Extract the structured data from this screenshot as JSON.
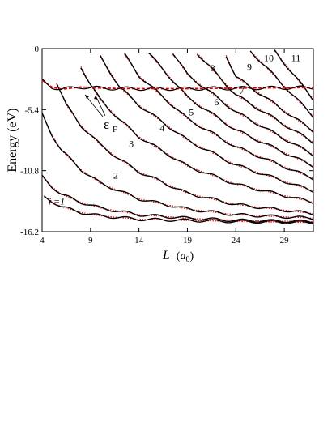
{
  "chart_data": {
    "type": "line",
    "xlabel_main": "L",
    "xlabel_unit": "a",
    "xlabel_unit_sub": "0",
    "ylabel": "Energy (eV)",
    "xlim": [
      4,
      32
    ],
    "ylim": [
      -16.2,
      0
    ],
    "x_ticks": [
      4,
      9,
      14,
      19,
      24,
      29
    ],
    "x_tick_labels": [
      "4",
      "9",
      "14",
      "19",
      "24",
      "29"
    ],
    "y_ticks": [
      0,
      -5.4,
      -10.8,
      -16.2
    ],
    "y_tick_labels": [
      "0",
      "-5.4",
      "-10.8",
      "-16.2"
    ],
    "colors": {
      "solid": "#000000",
      "dotted": "#e00000",
      "fermi": "#e00000"
    },
    "fermi_label": "ε",
    "fermi_label_sub": "F",
    "levels": [
      {
        "label": "i =1",
        "label_at": [
          5.5,
          -13.8
        ],
        "points": [
          [
            4.2,
            -13.1
          ],
          [
            6,
            -14.0
          ],
          [
            8,
            -14.5
          ],
          [
            10,
            -14.8
          ],
          [
            14,
            -15.1
          ],
          [
            19,
            -15.2
          ],
          [
            24,
            -15.3
          ],
          [
            32,
            -15.4
          ]
        ]
      },
      {
        "label": "2",
        "label_at": [
          11.6,
          -11.5
        ],
        "points": [
          [
            4,
            -11.3
          ],
          [
            5,
            -12.2
          ],
          [
            6,
            -12.9
          ],
          [
            8,
            -13.6
          ],
          [
            10,
            -14.1
          ],
          [
            14,
            -14.7
          ],
          [
            19,
            -15.0
          ],
          [
            24,
            -15.2
          ],
          [
            32,
            -15.3
          ]
        ]
      },
      {
        "label": "3",
        "label_at": [
          13.2,
          -8.7
        ],
        "points": [
          [
            4,
            -5.8
          ],
          [
            5,
            -7.6
          ],
          [
            6,
            -9.0
          ],
          [
            8,
            -10.7
          ],
          [
            10,
            -11.9
          ],
          [
            14,
            -13.3
          ],
          [
            19,
            -14.2
          ],
          [
            24,
            -14.7
          ],
          [
            32,
            -15.0
          ]
        ]
      },
      {
        "label": "4",
        "label_at": [
          16.4,
          -7.3
        ],
        "points": [
          [
            5.5,
            -3.0
          ],
          [
            6.5,
            -5.0
          ],
          [
            8,
            -6.8
          ],
          [
            10,
            -8.5
          ],
          [
            12,
            -9.8
          ],
          [
            14,
            -10.9
          ],
          [
            19,
            -12.8
          ],
          [
            24,
            -13.8
          ],
          [
            32,
            -14.6
          ]
        ]
      },
      {
        "label": "5",
        "label_at": [
          19.4,
          -5.9
        ],
        "points": [
          [
            8,
            -1.6
          ],
          [
            9,
            -3.2
          ],
          [
            10,
            -4.5
          ],
          [
            12,
            -6.3
          ],
          [
            14,
            -7.8
          ],
          [
            19,
            -10.4
          ],
          [
            24,
            -12.0
          ],
          [
            32,
            -13.6
          ]
        ]
      },
      {
        "label": "6",
        "label_at": [
          22.0,
          -5.0
        ],
        "points": [
          [
            10,
            -0.7
          ],
          [
            12,
            -3.4
          ],
          [
            14,
            -5.0
          ],
          [
            19,
            -8.1
          ],
          [
            24,
            -10.3
          ],
          [
            32,
            -12.6
          ]
        ]
      },
      {
        "label": "7",
        "label_at": [
          24.6,
          -4.0
        ],
        "points": [
          [
            12.5,
            -0.5
          ],
          [
            14,
            -2.4
          ],
          [
            19,
            -6.2
          ],
          [
            24,
            -8.7
          ],
          [
            32,
            -11.5
          ]
        ]
      },
      {
        "label": "8",
        "label_at": [
          21.6,
          -2.0
        ],
        "points": [
          [
            15,
            -0.4
          ],
          [
            19,
            -4.3
          ],
          [
            24,
            -7.2
          ],
          [
            32,
            -10.4
          ]
        ]
      },
      {
        "label": "9",
        "label_at": [
          25.4,
          -1.9
        ],
        "points": [
          [
            17.5,
            -0.4
          ],
          [
            19,
            -2.3
          ],
          [
            24,
            -5.6
          ],
          [
            32,
            -9.4
          ]
        ]
      },
      {
        "label": "10",
        "label_at": [
          27.4,
          -1.1
        ],
        "points": [
          [
            20,
            -0.4
          ],
          [
            24,
            -4.1
          ],
          [
            32,
            -8.3
          ]
        ]
      },
      {
        "label": "11",
        "label_at": [
          30.2,
          -1.1
        ],
        "points": [
          [
            23,
            -0.6
          ],
          [
            24,
            -2.5
          ],
          [
            32,
            -7.3
          ]
        ]
      },
      {
        "label": "",
        "label_at": null,
        "points": [
          [
            25.5,
            -0.2
          ],
          [
            32,
            -6.0
          ]
        ]
      },
      {
        "label": "",
        "label_at": null,
        "points": [
          [
            28,
            -0.2
          ],
          [
            32,
            -4.5
          ]
        ]
      }
    ],
    "fermi": {
      "label": "εF",
      "points": [
        [
          4,
          -2.8
        ],
        [
          5,
          -3.4
        ],
        [
          6,
          -3.6
        ],
        [
          8,
          -3.4
        ],
        [
          10,
          -3.5
        ],
        [
          14,
          -3.55
        ],
        [
          19,
          -3.55
        ],
        [
          24,
          -3.5
        ],
        [
          32,
          -3.45
        ]
      ]
    }
  }
}
